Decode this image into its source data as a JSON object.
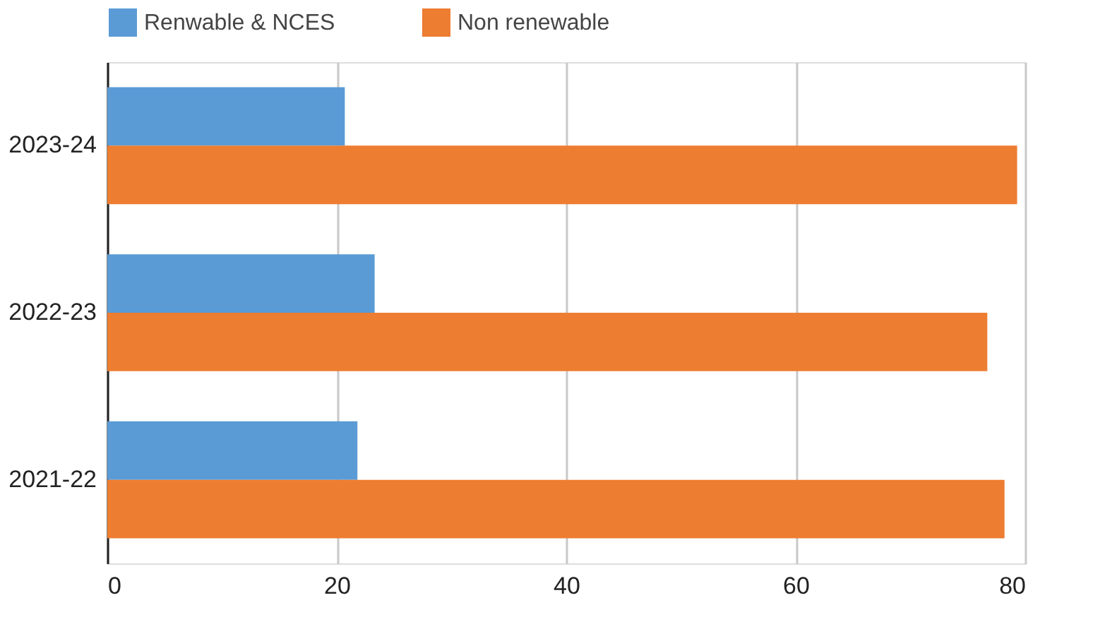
{
  "chart_data": {
    "type": "bar",
    "orientation": "horizontal",
    "categories": [
      "2023-24",
      "2022-23",
      "2021-22"
    ],
    "series": [
      {
        "name": "Renwable & NCES",
        "color": "#5b9bd5",
        "values": [
          20.7,
          23.3,
          21.8
        ]
      },
      {
        "name": "Non renewable",
        "color": "#ed7d31",
        "values": [
          79.3,
          76.7,
          78.2
        ]
      }
    ],
    "xlim": [
      0,
      80
    ],
    "xticks": [
      0,
      20,
      40,
      60,
      80
    ],
    "grid": "x",
    "legend": "top"
  }
}
